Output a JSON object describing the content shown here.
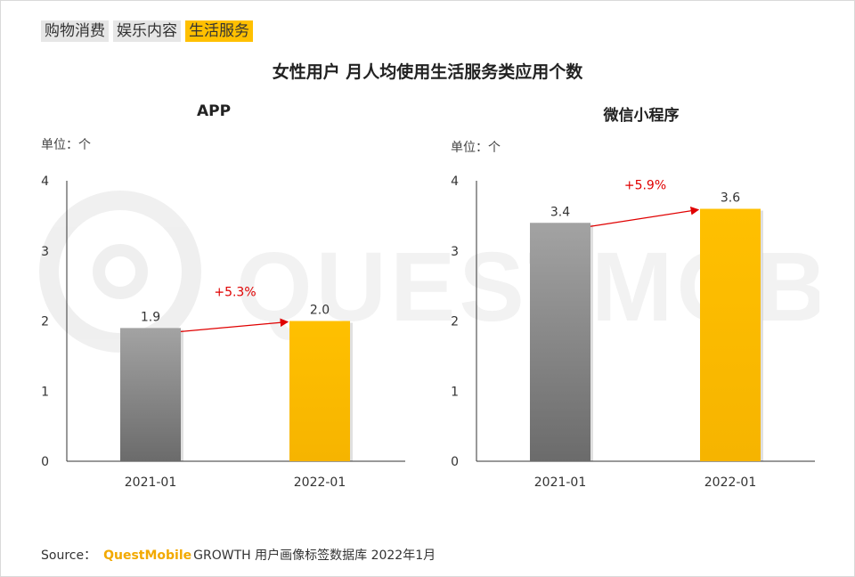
{
  "tabs": [
    "购物消费",
    "娱乐内容",
    "生活服务"
  ],
  "active_tab_index": 2,
  "title": "女性用户 月人均使用生活服务类应用个数",
  "watermark_text": "QUESTMOBILE",
  "source": {
    "label": "Source：",
    "brand": "QuestMobile",
    "rest": "GROWTH 用户画像标签数据库 2022年1月"
  },
  "colors": {
    "bar_2021": "#7f7f7f",
    "bar_2022": "#ffc000",
    "arrow": "#e00000",
    "axis": "#333333"
  },
  "chart_data": [
    {
      "type": "bar",
      "title": "APP",
      "unit_label": "单位：个",
      "categories": [
        "2021-01",
        "2022-01"
      ],
      "values": [
        1.9,
        2.0
      ],
      "value_labels": [
        "1.9",
        "2.0"
      ],
      "growth_label": "+5.3%",
      "ylim": [
        0,
        4
      ],
      "yticks": [
        0,
        1,
        2,
        3,
        4
      ],
      "grid": false
    },
    {
      "type": "bar",
      "title": "微信小程序",
      "unit_label": "单位：个",
      "categories": [
        "2021-01",
        "2022-01"
      ],
      "values": [
        3.4,
        3.6
      ],
      "value_labels": [
        "3.4",
        "3.6"
      ],
      "growth_label": "+5.9%",
      "ylim": [
        0,
        4
      ],
      "yticks": [
        0,
        1,
        2,
        3,
        4
      ],
      "grid": false
    }
  ]
}
